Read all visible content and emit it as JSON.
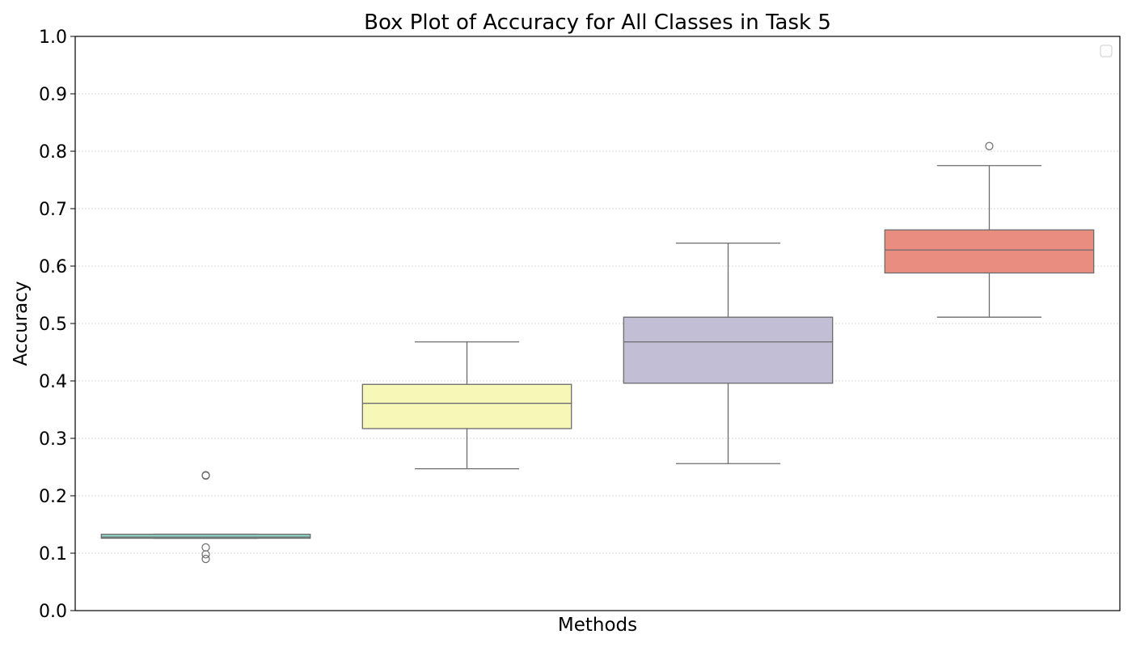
{
  "chart_data": {
    "type": "box",
    "title": "Box Plot of Accuracy for All Classes in Task 5",
    "xlabel": "Methods",
    "ylabel": "Accuracy",
    "ylim": [
      0,
      1
    ],
    "yticks": [
      "0.0",
      "0.1",
      "0.2",
      "0.3",
      "0.4",
      "0.5",
      "0.6",
      "0.7",
      "0.8",
      "0.9",
      "1.0"
    ],
    "grid": "horizontal dotted",
    "legend": {
      "placement": "top-right",
      "entries": []
    },
    "box_edge_color": "#6b6b6b",
    "series": [
      {
        "color": "#8dd3c7",
        "whisker_low": 0.126,
        "q1": 0.126,
        "median": 0.128,
        "q3": 0.133,
        "whisker_high": 0.133,
        "outliers": [
          0.235,
          0.236,
          0.11,
          0.098,
          0.09
        ]
      },
      {
        "color": "#f7f7b8",
        "whisker_low": 0.247,
        "q1": 0.317,
        "median": 0.361,
        "q3": 0.394,
        "whisker_high": 0.468,
        "outliers": []
      },
      {
        "color": "#c1bed6",
        "whisker_low": 0.256,
        "q1": 0.396,
        "median": 0.468,
        "q3": 0.511,
        "whisker_high": 0.64,
        "outliers": []
      },
      {
        "color": "#ea8d81",
        "whisker_low": 0.511,
        "q1": 0.588,
        "median": 0.628,
        "q3": 0.663,
        "whisker_high": 0.775,
        "outliers": [
          0.809
        ]
      }
    ]
  }
}
